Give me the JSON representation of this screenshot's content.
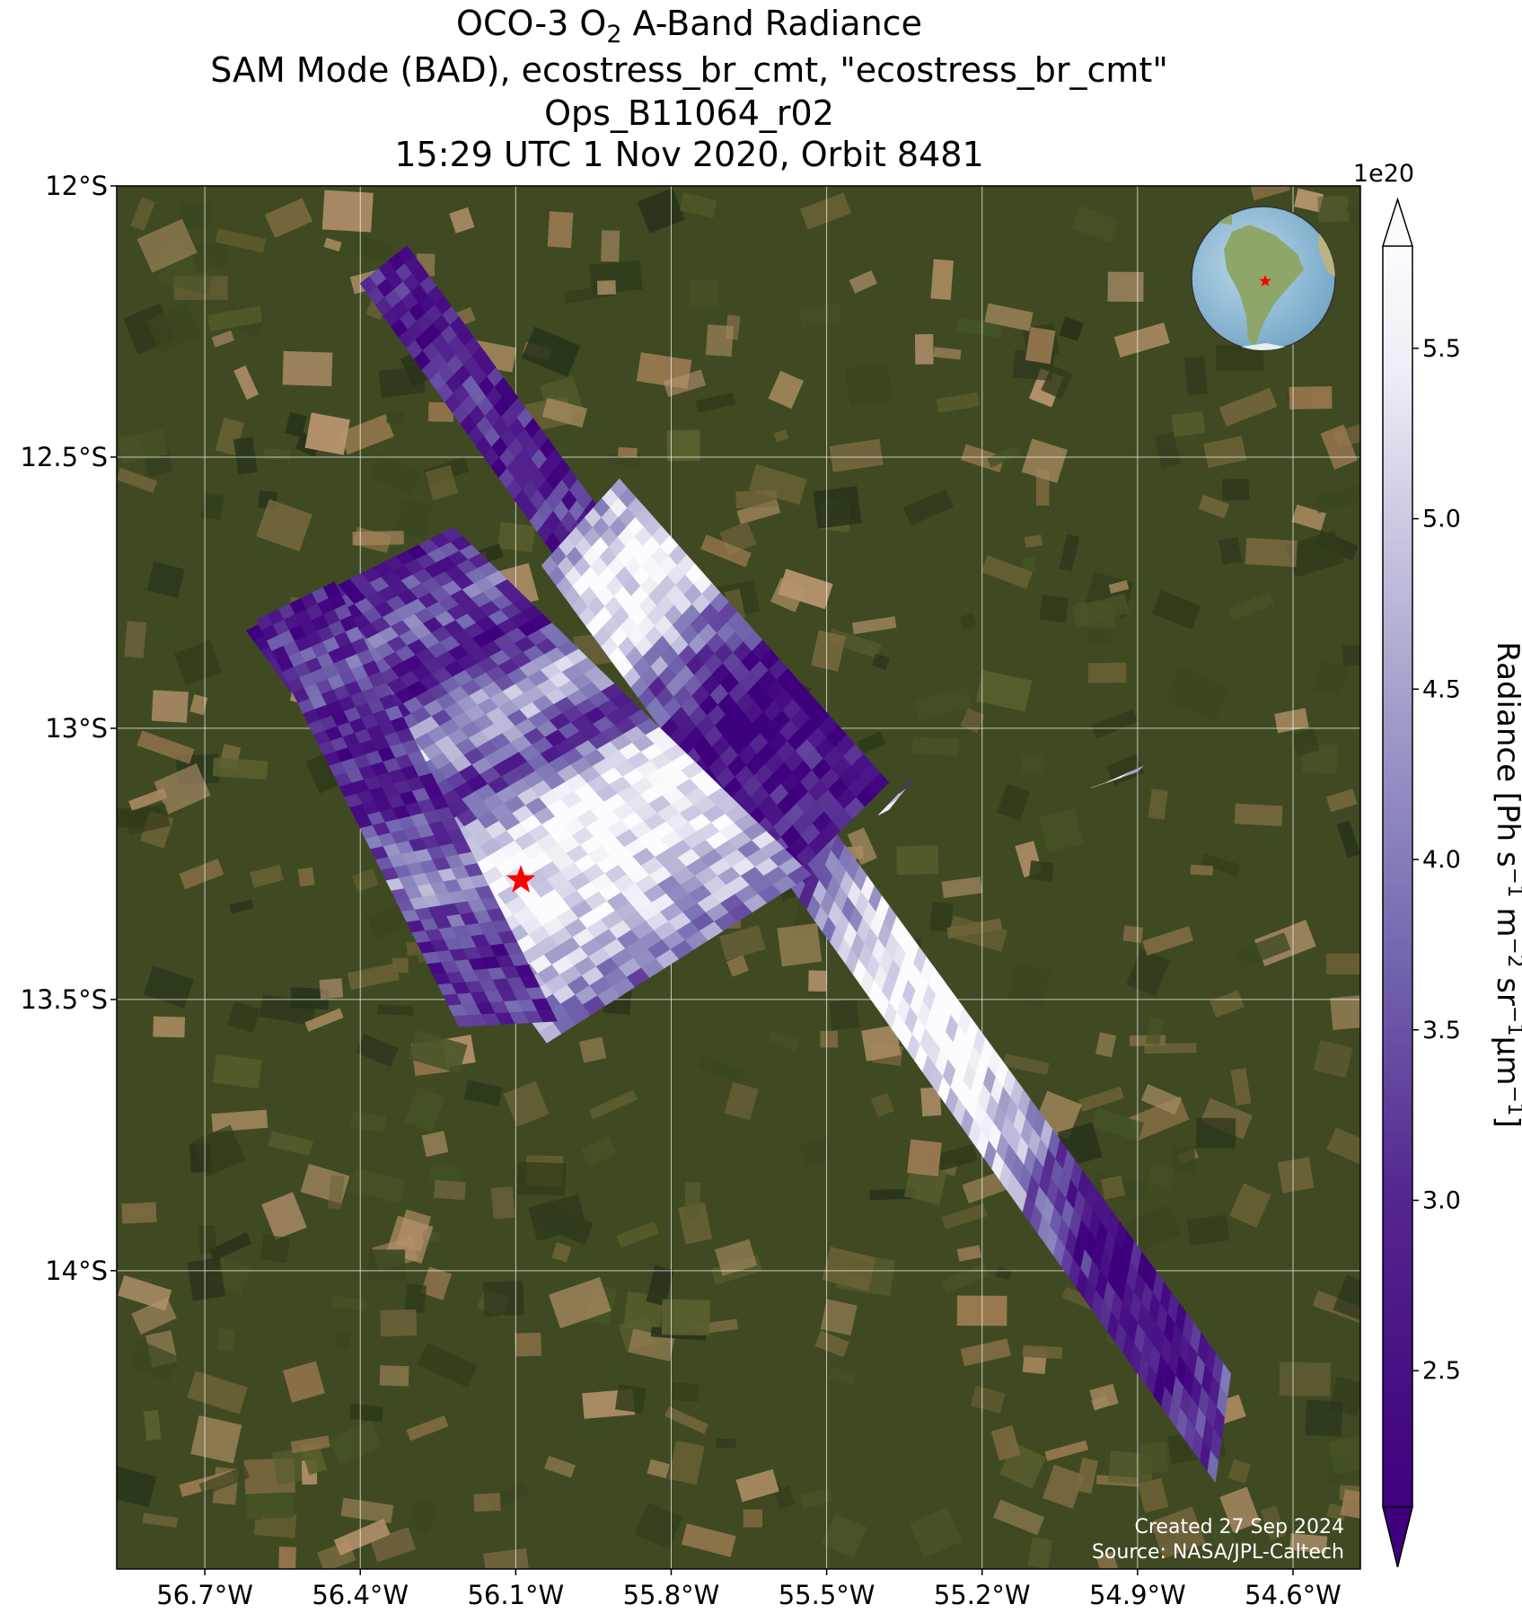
{
  "title": {
    "line1_pre": "OCO-3 O",
    "line1_sub": "2",
    "line1_post": " A-Band Radiance",
    "line2": "SAM Mode (BAD), ecostress_br_cmt, \"ecostress_br_cmt\"",
    "line3": "Ops_B11064_r02",
    "line4": "15:29 UTC 1 Nov 2020, Orbit 8481"
  },
  "map": {
    "lon_range": [
      -56.87,
      -54.47
    ],
    "lat_range": [
      -12.0,
      -14.55
    ],
    "lat_ticks": [
      {
        "value": -12.0,
        "label": "12°S"
      },
      {
        "value": -12.5,
        "label": "12.5°S"
      },
      {
        "value": -13.0,
        "label": "13°S"
      },
      {
        "value": -13.5,
        "label": "13.5°S"
      },
      {
        "value": -14.0,
        "label": "14°S"
      }
    ],
    "lon_ticks": [
      {
        "value": -56.7,
        "label": "56.7°W"
      },
      {
        "value": -56.4,
        "label": "56.4°W"
      },
      {
        "value": -56.1,
        "label": "56.1°W"
      },
      {
        "value": -55.8,
        "label": "55.8°W"
      },
      {
        "value": -55.5,
        "label": "55.5°W"
      },
      {
        "value": -55.2,
        "label": "55.2°W"
      },
      {
        "value": -54.9,
        "label": "54.9°W"
      },
      {
        "value": -54.6,
        "label": "54.6°W"
      }
    ],
    "target_marker": {
      "lon": -56.09,
      "lat": -13.28,
      "color": "#ff0000"
    },
    "grid": true,
    "basemap": "satellite imagery (forest / farmland)"
  },
  "swaths": [
    {
      "name": "main-strip",
      "corners": [
        [
          -56.4,
          -12.18
        ],
        [
          -56.31,
          -12.11
        ],
        [
          -54.72,
          -14.19
        ],
        [
          -54.75,
          -14.39
        ]
      ],
      "radiance_profile": [
        2.8,
        2.6,
        3.0,
        2.7,
        2.9,
        3.2,
        2.6,
        2.5,
        2.7,
        3.0,
        3.3,
        4.6,
        5.6,
        5.7,
        5.4,
        4.8,
        3.5,
        2.6,
        2.4,
        2.7,
        3.2
      ]
    },
    {
      "name": "sam-upper-right",
      "corners": [
        [
          -56.05,
          -12.7
        ],
        [
          -55.9,
          -12.54
        ],
        [
          -55.38,
          -13.1
        ],
        [
          -55.59,
          -13.3
        ]
      ],
      "radiance_profile": [
        4.5,
        5.7,
        5.5,
        3.6,
        2.5,
        2.4,
        2.7,
        2.6
      ]
    },
    {
      "name": "sam-main-block",
      "corners": [
        [
          -56.62,
          -12.82
        ],
        [
          -56.22,
          -12.63
        ],
        [
          -55.53,
          -13.27
        ],
        [
          -56.04,
          -13.58
        ]
      ],
      "radiance_profile": [
        2.7,
        3.6,
        2.6,
        4.8,
        3.0,
        5.6,
        5.7,
        4.9,
        4.0
      ]
    },
    {
      "name": "sam-left-block",
      "corners": [
        [
          -56.6,
          -12.8
        ],
        [
          -56.45,
          -12.73
        ],
        [
          -56.02,
          -13.54
        ],
        [
          -56.21,
          -13.55
        ]
      ],
      "radiance_profile": [
        2.6,
        3.4,
        2.8,
        3.0,
        4.2,
        2.9,
        3.1
      ]
    },
    {
      "name": "small-patch-1",
      "corners": [
        [
          -55.4,
          -13.16
        ],
        [
          -55.38,
          -13.15
        ],
        [
          -55.33,
          -13.09
        ],
        [
          -55.34,
          -13.1
        ]
      ],
      "radiance_profile": [
        5.7,
        3.2
      ]
    },
    {
      "name": "small-patch-2",
      "corners": [
        [
          -54.99,
          -13.11
        ],
        [
          -54.96,
          -13.1
        ],
        [
          -54.89,
          -13.07
        ],
        [
          -54.9,
          -13.08
        ]
      ],
      "radiance_profile": [
        5.6,
        3.8
      ]
    }
  ],
  "colorbar": {
    "label_main": "Radiance [Ph s",
    "label_full": "Radiance [Ph s⁻¹ m⁻² sr⁻¹μm⁻¹]",
    "multiplier": "1e20",
    "range": [
      2.1,
      5.8
    ],
    "ticks": [
      "2.5",
      "3.0",
      "3.5",
      "4.0",
      "4.5",
      "5.0",
      "5.5"
    ],
    "tick_values": [
      2.5,
      3.0,
      3.5,
      4.0,
      4.5,
      5.0,
      5.5
    ],
    "colormap": "Purples_r",
    "color_low": "#3f007d",
    "color_high": "#fcfbfd",
    "extend": "both"
  },
  "inset_globe": {
    "marker_color": "#ff0000"
  },
  "credits": {
    "created": "Created 27 Sep 2024",
    "source": "Source: NASA/JPL-Caltech"
  }
}
